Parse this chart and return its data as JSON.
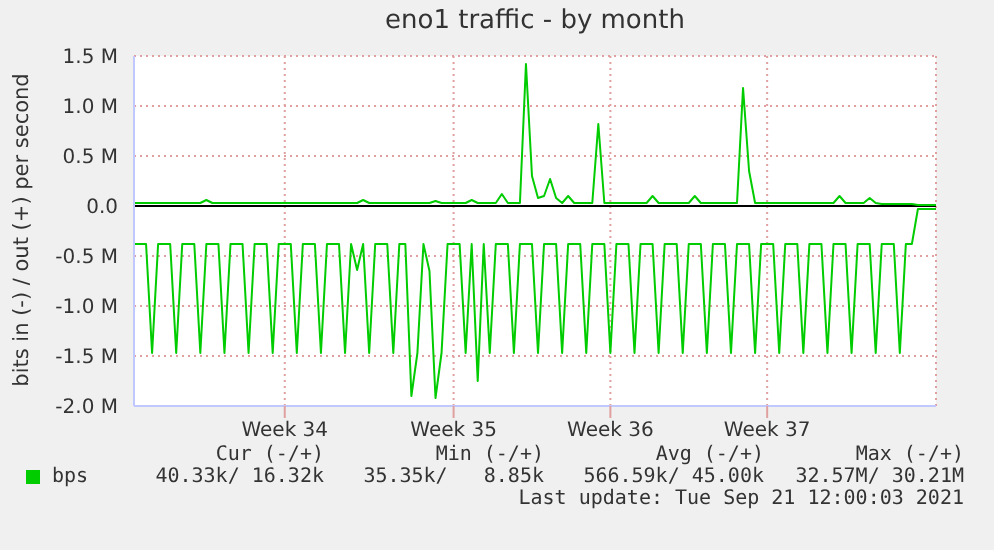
{
  "chart_data": {
    "type": "line",
    "title": "eno1 traffic - by month",
    "ylabel": "bits in (-) / out (+) per second",
    "categories": [
      null,
      null,
      null,
      null,
      null,
      null,
      null,
      null,
      null,
      null,
      null,
      null,
      null,
      null,
      null,
      null,
      null,
      null,
      null,
      null,
      null,
      null,
      null,
      null,
      null,
      "Week 34",
      null,
      null,
      null,
      null,
      null,
      null,
      null,
      null,
      null,
      null,
      null,
      null,
      null,
      null,
      null,
      null,
      null,
      null,
      null,
      null,
      null,
      null,
      null,
      null,
      null,
      null,
      null,
      "Week 35",
      null,
      null,
      null,
      null,
      null,
      null,
      null,
      null,
      null,
      null,
      null,
      null,
      null,
      null,
      null,
      null,
      null,
      null,
      null,
      null,
      null,
      null,
      null,
      null,
      null,
      "Week 36",
      null,
      null,
      null,
      null,
      null,
      null,
      null,
      null,
      null,
      null,
      null,
      null,
      null,
      null,
      null,
      null,
      null,
      null,
      null,
      null,
      null,
      null,
      null,
      null,
      null,
      "Week 37",
      null,
      null,
      null,
      null,
      null,
      null,
      null,
      null,
      null,
      null,
      null,
      null,
      null,
      null,
      null,
      null,
      null,
      null,
      null,
      null,
      null,
      null,
      null,
      null,
      null,
      null,
      null,
      null
    ],
    "ylim": [
      -2.0,
      1.5
    ],
    "yticks": [
      {
        "value": -2.0,
        "label": "-2.0 M"
      },
      {
        "value": -1.5,
        "label": "-1.5 M"
      },
      {
        "value": -1.0,
        "label": "-1.0 M"
      },
      {
        "value": -0.5,
        "label": "-0.5 M"
      },
      {
        "value": 0,
        "label": "0.0"
      },
      {
        "value": 0.5,
        "label": "0.5 M"
      },
      {
        "value": 1.0,
        "label": "1.0 M"
      },
      {
        "value": 1.5,
        "label": "1.5 M"
      }
    ],
    "grid": true,
    "legend": "bottom",
    "marker": "none",
    "line_style": "solid",
    "ref_lines": [
      {
        "axis": "y",
        "value": 0,
        "color": "#000000"
      }
    ],
    "series": [
      {
        "color": "#00cc00",
        "values": [
          0.03,
          0.03,
          0.03,
          0.03,
          0.03,
          0.03,
          0.03,
          0.03,
          0.03,
          0.03,
          0.03,
          0.03,
          0.06,
          0.03,
          0.03,
          0.03,
          0.03,
          0.03,
          0.03,
          0.03,
          0.03,
          0.03,
          0.03,
          0.03,
          0.03,
          0.03,
          0.03,
          0.03,
          0.03,
          0.03,
          0.03,
          0.03,
          0.03,
          0.03,
          0.03,
          0.03,
          0.03,
          0.03,
          0.06,
          0.03,
          0.03,
          0.03,
          0.03,
          0.03,
          0.03,
          0.03,
          0.03,
          0.03,
          0.03,
          0.03,
          0.05,
          0.03,
          0.03,
          0.03,
          0.03,
          0.03,
          0.06,
          0.03,
          0.03,
          0.03,
          0.03,
          0.12,
          0.03,
          0.03,
          0.03,
          1.42,
          0.3,
          0.08,
          0.1,
          0.27,
          0.08,
          0.03,
          0.1,
          0.03,
          0.03,
          0.03,
          0.03,
          0.82,
          0.03,
          0.03,
          0.03,
          0.03,
          0.03,
          0.03,
          0.03,
          0.03,
          0.1,
          0.03,
          0.03,
          0.03,
          0.03,
          0.03,
          0.03,
          0.1,
          0.03,
          0.03,
          0.03,
          0.03,
          0.03,
          0.03,
          0.03,
          1.18,
          0.35,
          0.03,
          0.03,
          0.03,
          0.03,
          0.03,
          0.03,
          0.03,
          0.03,
          0.03,
          0.03,
          0.03,
          0.03,
          0.03,
          0.03,
          0.1,
          0.03,
          0.03,
          0.03,
          0.03,
          0.08,
          0.03,
          0.02,
          0.02,
          0.02,
          0.02,
          0.02,
          0.02,
          0.01,
          0.01,
          0.01,
          0.01
        ]
      },
      {
        "name": "bps",
        "color": "#00cc00",
        "values": [
          -0.38,
          -0.38,
          -0.38,
          -1.47,
          -0.38,
          -0.38,
          -0.38,
          -1.47,
          -0.38,
          -0.38,
          -0.38,
          -1.47,
          -0.38,
          -0.38,
          -0.38,
          -1.47,
          -0.38,
          -0.38,
          -0.38,
          -1.47,
          -0.38,
          -0.38,
          -0.38,
          -1.47,
          -0.38,
          -0.38,
          -0.38,
          -1.47,
          -0.38,
          -0.38,
          -0.38,
          -1.47,
          -0.38,
          -0.38,
          -0.38,
          -1.47,
          -0.38,
          -0.64,
          -0.38,
          -1.47,
          -0.38,
          -0.38,
          -0.38,
          -1.47,
          -0.38,
          -0.38,
          -1.9,
          -1.47,
          -0.38,
          -0.65,
          -1.92,
          -1.47,
          -0.38,
          -0.38,
          -0.38,
          -1.47,
          -0.38,
          -1.75,
          -0.38,
          -1.47,
          -0.38,
          -0.38,
          -0.38,
          -1.47,
          -0.38,
          -0.38,
          -0.38,
          -1.47,
          -0.38,
          -0.38,
          -0.38,
          -1.47,
          -0.38,
          -0.38,
          -0.38,
          -1.47,
          -0.38,
          -0.38,
          -0.38,
          -1.47,
          -0.38,
          -0.38,
          -0.38,
          -1.47,
          -0.38,
          -0.38,
          -0.38,
          -1.47,
          -0.38,
          -0.38,
          -0.38,
          -1.47,
          -0.38,
          -0.38,
          -0.38,
          -1.47,
          -0.38,
          -0.38,
          -0.38,
          -1.47,
          -0.38,
          -0.38,
          -0.38,
          -1.47,
          -0.38,
          -0.38,
          -0.38,
          -1.47,
          -0.38,
          -0.38,
          -0.38,
          -1.47,
          -0.38,
          -0.38,
          -0.38,
          -1.47,
          -0.38,
          -0.38,
          -0.38,
          -1.47,
          -0.38,
          -0.38,
          -0.38,
          -1.47,
          -0.38,
          -0.38,
          -0.38,
          -1.47,
          -0.38,
          -0.38,
          -0.03,
          -0.03,
          -0.03,
          -0.03
        ]
      }
    ],
    "annotations": [
      "Cur (-/+)",
      "Min (-/+)",
      "Avg (-/+)",
      "Max (-/+)",
      "40.33k/ 16.32k",
      "35.35k/   8.85k",
      "566.59k/ 45.00k",
      "32.57M/ 30.21M",
      "Last update: Tue Sep 21 12:00:03 2021"
    ]
  }
}
